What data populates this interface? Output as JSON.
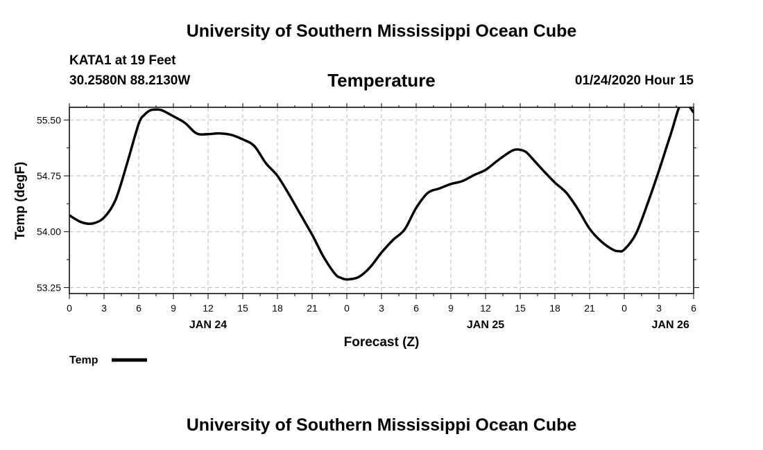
{
  "header": {
    "title": "University of Southern Mississippi Ocean Cube",
    "station": "KATA1 at 19 Feet",
    "coordinates": "30.2580N 88.2130W",
    "chart_title": "Temperature",
    "timestamp": "01/24/2020 Hour 15"
  },
  "footer": {
    "title": "University of Southern Mississippi Ocean Cube"
  },
  "chart_data": {
    "type": "line",
    "title": "Temperature",
    "xlabel": "Forecast (Z)",
    "ylabel": "Temp (degF)",
    "ylim": [
      53.17,
      55.67
    ],
    "xlim": [
      0,
      54
    ],
    "y_ticks": [
      53.25,
      54.0,
      54.75,
      55.5
    ],
    "y_tick_labels": [
      "53.25",
      "54.00",
      "54.75",
      "55.50"
    ],
    "x_ticks": [
      0,
      3,
      6,
      9,
      12,
      15,
      18,
      21,
      24,
      27,
      30,
      33,
      36,
      39,
      42,
      45,
      48,
      51,
      54
    ],
    "x_tick_labels": [
      "0",
      "3",
      "6",
      "9",
      "12",
      "15",
      "18",
      "21",
      "0",
      "3",
      "6",
      "9",
      "12",
      "15",
      "18",
      "21",
      "0",
      "3",
      "6"
    ],
    "date_labels": [
      {
        "label": "JAN 24",
        "x": 12
      },
      {
        "label": "JAN 25",
        "x": 36
      },
      {
        "label": "JAN 26",
        "x": 52
      }
    ],
    "grid": true,
    "legend": {
      "position": "bottom-left",
      "entries": [
        "Temp"
      ]
    },
    "series": [
      {
        "name": "Temp",
        "color": "#000000",
        "x": [
          0,
          1,
          2,
          3,
          4,
          5,
          6,
          6.5,
          7,
          7.5,
          8,
          9,
          10,
          11,
          12,
          13,
          14,
          15,
          16,
          17,
          18,
          19,
          20,
          21,
          22,
          23,
          23.5,
          24,
          25,
          26,
          27,
          28,
          29,
          30,
          31,
          32,
          33,
          34,
          35,
          36,
          37,
          38,
          38.5,
          39,
          39.5,
          40,
          41,
          42,
          43,
          44,
          45,
          46,
          47,
          47.5,
          48,
          49,
          50,
          51,
          52,
          53,
          54
        ],
        "values": [
          54.22,
          54.13,
          54.11,
          54.19,
          54.43,
          54.92,
          55.45,
          55.57,
          55.63,
          55.64,
          55.63,
          55.55,
          55.46,
          55.32,
          55.31,
          55.32,
          55.3,
          55.24,
          55.15,
          54.92,
          54.75,
          54.5,
          54.23,
          53.96,
          53.66,
          53.43,
          53.38,
          53.36,
          53.39,
          53.52,
          53.72,
          53.89,
          54.03,
          54.32,
          54.52,
          54.58,
          54.64,
          54.68,
          54.76,
          54.83,
          54.95,
          55.06,
          55.1,
          55.1,
          55.07,
          54.99,
          54.82,
          54.66,
          54.52,
          54.3,
          54.04,
          53.87,
          53.76,
          53.74,
          53.76,
          53.97,
          54.37,
          54.82,
          55.3,
          55.74,
          55.6
        ]
      }
    ]
  }
}
